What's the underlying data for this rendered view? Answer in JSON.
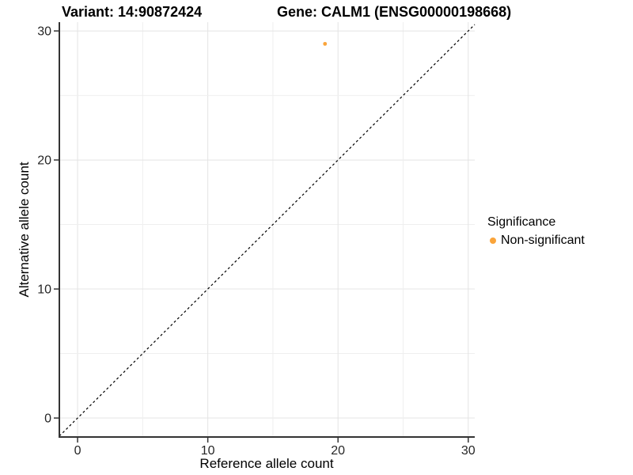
{
  "titles": {
    "variant": "Variant: 14:90872424",
    "gene": "Gene: CALM1 (ENSG00000198668)"
  },
  "chart_data": {
    "type": "scatter",
    "title_left": "Variant: 14:90872424",
    "title_right": "Gene: CALM1 (ENSG00000198668)",
    "xlabel": "Reference allele count",
    "ylabel": "Alternative allele count",
    "xlim": [
      -1.4,
      30.5
    ],
    "ylim": [
      -1.47,
      30.68
    ],
    "x_ticks": [
      0,
      10,
      20,
      30
    ],
    "y_ticks": [
      0,
      10,
      20,
      30
    ],
    "minor_tick_step": 5,
    "grid": true,
    "diagonal_line": {
      "slope": 1,
      "intercept": 0,
      "style": "dashed",
      "color": "#000000"
    },
    "series": [
      {
        "name": "Non-significant",
        "color": "#FAA43A",
        "points": [
          {
            "x": 19,
            "y": 29
          }
        ]
      }
    ],
    "legend": {
      "title": "Significance",
      "position": "right",
      "entries": [
        {
          "label": "Non-significant",
          "color": "#FAA43A"
        }
      ]
    },
    "style": {
      "axis_line_color": "#333333",
      "tick_color": "#333333",
      "grid_major_color": "#e4e4e4",
      "grid_minor_color": "#efefef",
      "point_radius": 2.4
    }
  }
}
